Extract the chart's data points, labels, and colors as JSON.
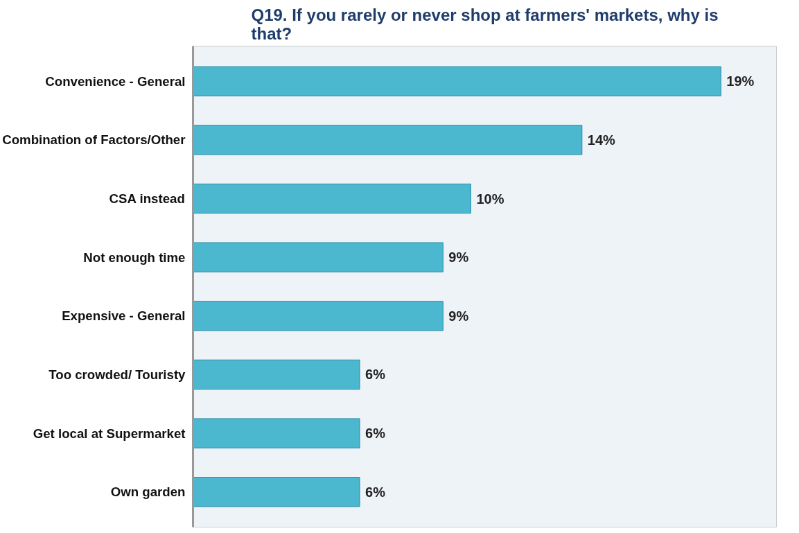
{
  "chart_data": {
    "type": "bar",
    "orientation": "horizontal",
    "title": "Q19. If you rarely or never shop at farmers' markets, why is that?",
    "categories": [
      "Convenience - General",
      "Combination of Factors/Other",
      "CSA instead",
      "Not enough time",
      "Expensive - General",
      "Too crowded/ Touristy",
      "Get local at Supermarket",
      "Own garden"
    ],
    "values": [
      19,
      14,
      10,
      9,
      9,
      6,
      6,
      6
    ],
    "value_labels": [
      "19%",
      "14%",
      "10%",
      "9%",
      "9%",
      "6%",
      "6%",
      "6%"
    ],
    "color": "#4bb8d0",
    "xlim": [
      0,
      21
    ],
    "tick_labels": "y",
    "grid": false
  }
}
